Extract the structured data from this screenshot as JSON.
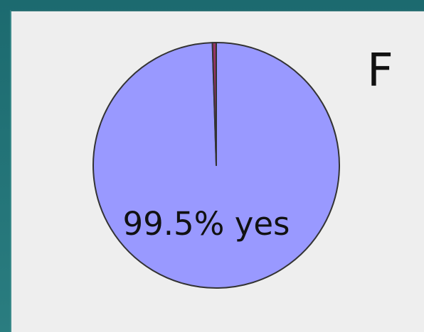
{
  "panel": {
    "label": "F"
  },
  "chart_data": {
    "type": "pie",
    "title": "",
    "slices": [
      {
        "label": "yes",
        "value": 99.5,
        "color": "#9999ff",
        "display_text": "99.5% yes"
      },
      {
        "label": "",
        "value": 0.5,
        "color": "#993366"
      }
    ],
    "start_angle_deg": -90,
    "outline_color": "#333333",
    "legend": "none"
  }
}
